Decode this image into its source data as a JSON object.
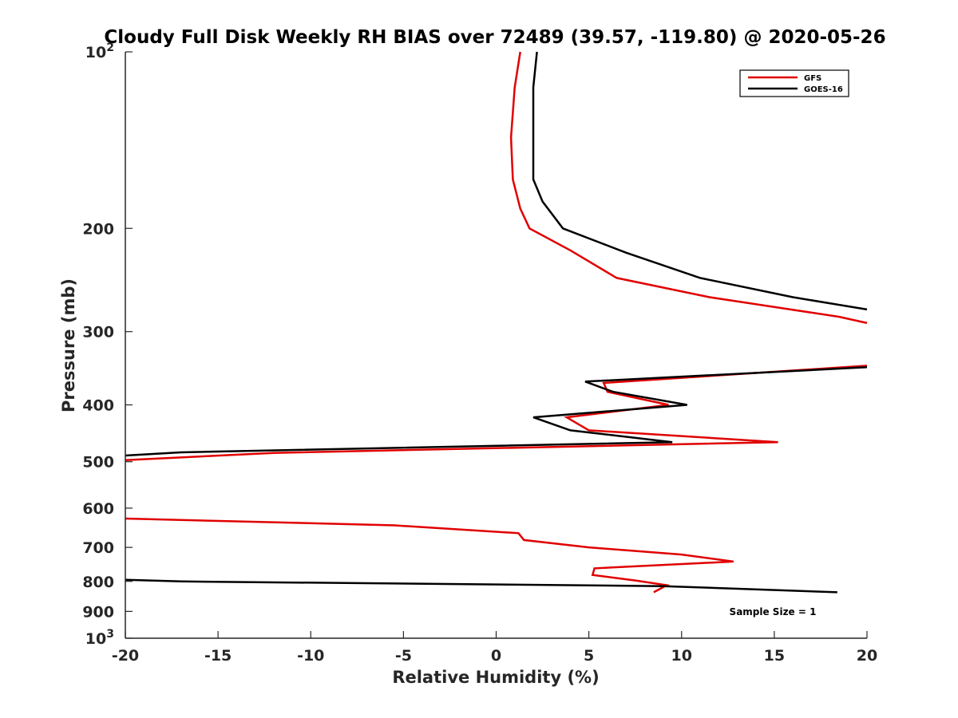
{
  "chart_data": {
    "type": "line",
    "title": "Cloudy Full Disk Weekly RH BIAS over 72489 (39.57, -119.80) @ 2020-05-26",
    "xlabel": "Relative Humidity (%)",
    "ylabel": "Pressure (mb)",
    "xlim": [
      -20,
      20
    ],
    "ylim": [
      100,
      1000
    ],
    "y_scale": "log",
    "y_reversed": true,
    "grid": false,
    "legend_position": "top-right",
    "x_ticks": [
      {
        "value": -20,
        "label": "-20"
      },
      {
        "value": -15,
        "label": "-15"
      },
      {
        "value": -10,
        "label": "-10"
      },
      {
        "value": -5,
        "label": "-5"
      },
      {
        "value": 0,
        "label": "0"
      },
      {
        "value": 5,
        "label": "5"
      },
      {
        "value": 10,
        "label": "10"
      },
      {
        "value": 15,
        "label": "15"
      },
      {
        "value": 20,
        "label": "20"
      }
    ],
    "y_ticks": [
      {
        "value": 100,
        "label": "10",
        "sup": "2"
      },
      {
        "value": 200,
        "label": "200"
      },
      {
        "value": 300,
        "label": "300"
      },
      {
        "value": 400,
        "label": "400"
      },
      {
        "value": 500,
        "label": "500"
      },
      {
        "value": 600,
        "label": "600"
      },
      {
        "value": 700,
        "label": "700"
      },
      {
        "value": 800,
        "label": "800"
      },
      {
        "value": 900,
        "label": "900"
      },
      {
        "value": 1000,
        "label": "10",
        "sup": "3"
      }
    ],
    "annotation": "Sample Size = 1",
    "series": [
      {
        "name": "GFS",
        "color": "#e00000",
        "segments": [
          [
            {
              "x": 1.3,
              "y": 100
            },
            {
              "x": 1.0,
              "y": 115
            },
            {
              "x": 0.8,
              "y": 140
            },
            {
              "x": 0.9,
              "y": 165
            },
            {
              "x": 1.3,
              "y": 185
            },
            {
              "x": 1.8,
              "y": 200
            },
            {
              "x": 4.0,
              "y": 218
            },
            {
              "x": 6.5,
              "y": 243
            },
            {
              "x": 11.5,
              "y": 262
            },
            {
              "x": 18.5,
              "y": 283
            },
            {
              "x": 20.0,
              "y": 290
            }
          ],
          [
            {
              "x": 20.0,
              "y": 343
            },
            {
              "x": 5.8,
              "y": 367
            },
            {
              "x": 6.0,
              "y": 380
            },
            {
              "x": 9.3,
              "y": 400
            },
            {
              "x": 3.8,
              "y": 420
            },
            {
              "x": 5.0,
              "y": 442
            },
            {
              "x": 15.2,
              "y": 463
            },
            {
              "x": -12.0,
              "y": 483
            },
            {
              "x": -20.0,
              "y": 497
            }
          ],
          [
            {
              "x": -20.0,
              "y": 625
            },
            {
              "x": -5.5,
              "y": 642
            },
            {
              "x": 1.2,
              "y": 662
            },
            {
              "x": 1.5,
              "y": 680
            },
            {
              "x": 5.0,
              "y": 700
            },
            {
              "x": 10.0,
              "y": 720
            },
            {
              "x": 12.8,
              "y": 740
            },
            {
              "x": 5.3,
              "y": 760
            },
            {
              "x": 5.2,
              "y": 780
            },
            {
              "x": 7.5,
              "y": 797
            },
            {
              "x": 9.2,
              "y": 812
            },
            {
              "x": 8.5,
              "y": 835
            }
          ]
        ]
      },
      {
        "name": "GOES-16",
        "color": "#000000",
        "segments": [
          [
            {
              "x": 2.2,
              "y": 100
            },
            {
              "x": 2.0,
              "y": 115
            },
            {
              "x": 2.0,
              "y": 140
            },
            {
              "x": 2.0,
              "y": 165
            },
            {
              "x": 2.5,
              "y": 180
            },
            {
              "x": 3.6,
              "y": 200
            },
            {
              "x": 7.0,
              "y": 220
            },
            {
              "x": 11.0,
              "y": 243
            },
            {
              "x": 16.0,
              "y": 262
            },
            {
              "x": 20.0,
              "y": 275
            }
          ],
          [
            {
              "x": 20.0,
              "y": 345
            },
            {
              "x": 4.8,
              "y": 365
            },
            {
              "x": 6.3,
              "y": 380
            },
            {
              "x": 10.3,
              "y": 400
            },
            {
              "x": 2.0,
              "y": 420
            },
            {
              "x": 4.0,
              "y": 442
            },
            {
              "x": 9.5,
              "y": 463
            },
            {
              "x": -17.0,
              "y": 482
            },
            {
              "x": -20.0,
              "y": 488
            }
          ],
          [
            {
              "x": -20.0,
              "y": 795
            },
            {
              "x": -17.0,
              "y": 800
            },
            {
              "x": 9.0,
              "y": 815
            },
            {
              "x": 18.4,
              "y": 835
            }
          ]
        ]
      }
    ]
  }
}
